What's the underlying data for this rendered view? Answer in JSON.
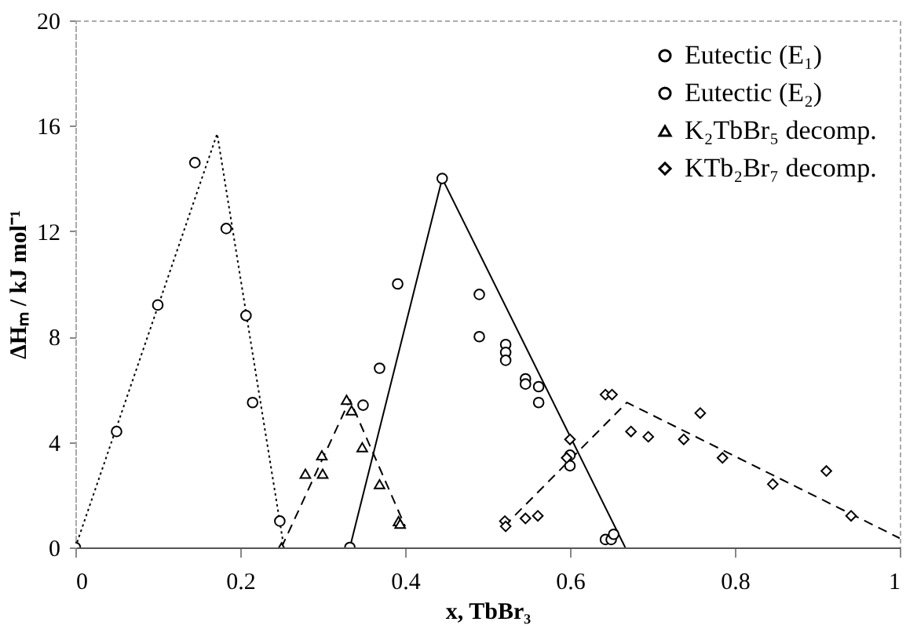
{
  "chart_data": {
    "type": "scatter",
    "xlabel": "x, TbBr₃",
    "ylabel": "ΔHₘ / kJ mol⁻¹",
    "xlim": [
      0,
      1
    ],
    "ylim": [
      0,
      20
    ],
    "xticks": [
      0,
      0.2,
      0.4,
      0.6,
      0.8,
      1
    ],
    "yticks": [
      0,
      4,
      8,
      12,
      16,
      20
    ],
    "grid": false,
    "legend": "top right",
    "series": [
      {
        "name": "Eutectic (E₁)",
        "type": "scatter",
        "marker": "circle",
        "color": "#000000",
        "x": [
          0,
          0.05,
          0.1,
          0.145,
          0.183,
          0.207,
          0.215,
          0.248
        ],
        "values": [
          0,
          4.4,
          9.2,
          14.6,
          12.1,
          8.8,
          5.5,
          1.0
        ]
      },
      {
        "name": "Eutectic (E₂)",
        "type": "scatter",
        "marker": "circle",
        "color": "#000000",
        "x": [
          0.333,
          0.349,
          0.369,
          0.391,
          0.445,
          0.49,
          0.49,
          0.522,
          0.522,
          0.522,
          0.546,
          0.546,
          0.562,
          0.562,
          0.6,
          0.6,
          0.643,
          0.65,
          0.653
        ],
        "values": [
          0,
          5.4,
          6.8,
          10.0,
          14.0,
          9.6,
          8.0,
          7.7,
          7.4,
          7.1,
          6.4,
          6.2,
          6.1,
          5.5,
          3.5,
          3.1,
          0.3,
          0.3,
          0.5
        ]
      },
      {
        "name": "K₂TbBr₅ decomp.",
        "type": "scatter",
        "marker": "triangle",
        "color": "#000000",
        "x": [
          0.25,
          0.279,
          0.299,
          0.3,
          0.329,
          0.335,
          0.348,
          0.369,
          0.392,
          0.394
        ],
        "values": [
          0,
          2.8,
          3.5,
          2.8,
          5.6,
          5.2,
          3.8,
          2.4,
          1.0,
          0.9
        ]
      },
      {
        "name": "KTb₂Br₇ decomp.",
        "type": "scatter",
        "marker": "diamond",
        "color": "#000000",
        "x": [
          0.521,
          0.522,
          0.546,
          0.561,
          0.596,
          0.6,
          0.643,
          0.651,
          0.674,
          0.695,
          0.738,
          0.758,
          0.785,
          0.846,
          0.911,
          0.941
        ],
        "values": [
          1.0,
          0.8,
          1.1,
          1.2,
          3.4,
          4.1,
          5.8,
          5.8,
          4.4,
          4.2,
          4.1,
          5.1,
          3.4,
          2.4,
          2.9,
          1.2
        ]
      },
      {
        "type": "line",
        "line_style": "dotted",
        "color": "#000000",
        "x": [
          0,
          0.172,
          0.253
        ],
        "values": [
          0,
          15.7,
          0
        ]
      },
      {
        "type": "line",
        "line_style": "dashed",
        "color": "#000000",
        "x": [
          0.25,
          0.333,
          0.4
        ],
        "values": [
          0,
          5.6,
          0.8
        ]
      },
      {
        "type": "line",
        "line_style": "solid",
        "color": "#000000",
        "x": [
          0.333,
          0.445,
          0.667
        ],
        "values": [
          0,
          14.0,
          0
        ]
      },
      {
        "type": "line",
        "line_style": "dashed",
        "color": "#000000",
        "x": [
          0.52,
          0.669,
          1
        ],
        "values": [
          0.8,
          5.5,
          0.35
        ]
      }
    ]
  }
}
